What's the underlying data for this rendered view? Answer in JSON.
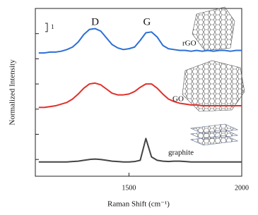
{
  "chart_data": {
    "type": "line",
    "x_label": "Raman Shift (cm⁻¹)",
    "y_label": "Normalized Intensity",
    "peak_labels": [
      {
        "text": "D",
        "x": 1350
      },
      {
        "text": "G",
        "x": 1580
      }
    ],
    "scale_bar": 1,
    "xlim": [
      1085,
      2000
    ],
    "xticks": [
      1500,
      2000
    ],
    "ylim": [
      0,
      20
    ],
    "yticks": [
      2,
      5,
      8,
      11,
      14,
      17
    ],
    "x": [
      1100,
      1125,
      1150,
      1175,
      1200,
      1225,
      1250,
      1275,
      1300,
      1325,
      1350,
      1375,
      1400,
      1425,
      1450,
      1475,
      1500,
      1525,
      1550,
      1575,
      1600,
      1625,
      1650,
      1675,
      1700,
      1725,
      1750,
      1775,
      1800,
      1825,
      1850,
      1875,
      1900,
      1925,
      1950,
      1975,
      2000
    ],
    "series": [
      {
        "name": "rGO",
        "color": "#2b6fd6",
        "values": [
          14.7,
          14.7,
          14.8,
          14.8,
          14.9,
          15.1,
          15.4,
          16.0,
          16.9,
          17.5,
          17.6,
          17.3,
          16.5,
          15.7,
          15.3,
          15.1,
          15.2,
          15.4,
          16.2,
          17.1,
          17.2,
          16.6,
          15.6,
          15.2,
          15.1,
          15.0,
          15.0,
          14.9,
          15.0,
          14.9,
          15.0,
          14.9,
          15.0,
          15.0,
          14.9,
          15.0,
          15.0
        ]
      },
      {
        "name": "GO",
        "color": "#e0302c",
        "values": [
          8.2,
          8.2,
          8.3,
          8.4,
          8.6,
          8.8,
          9.2,
          9.8,
          10.5,
          11.0,
          11.1,
          10.9,
          10.4,
          9.9,
          9.7,
          9.7,
          9.8,
          10.1,
          10.6,
          11.0,
          11.0,
          10.5,
          9.8,
          9.2,
          8.9,
          8.7,
          8.6,
          8.5,
          8.5,
          8.4,
          8.4,
          8.4,
          8.4,
          8.4,
          8.4,
          8.4,
          8.4
        ]
      },
      {
        "name": "graphite",
        "color": "#444444",
        "values": [
          1.7,
          1.7,
          1.7,
          1.7,
          1.7,
          1.7,
          1.75,
          1.8,
          1.9,
          2.0,
          2.05,
          2.0,
          1.9,
          1.8,
          1.75,
          1.7,
          1.7,
          1.75,
          1.9,
          4.5,
          2.3,
          1.9,
          1.8,
          1.75,
          1.8,
          1.8,
          1.75,
          1.7,
          1.7,
          1.7,
          1.7,
          1.7,
          1.7,
          1.7,
          1.7,
          1.7,
          1.7
        ]
      }
    ]
  }
}
